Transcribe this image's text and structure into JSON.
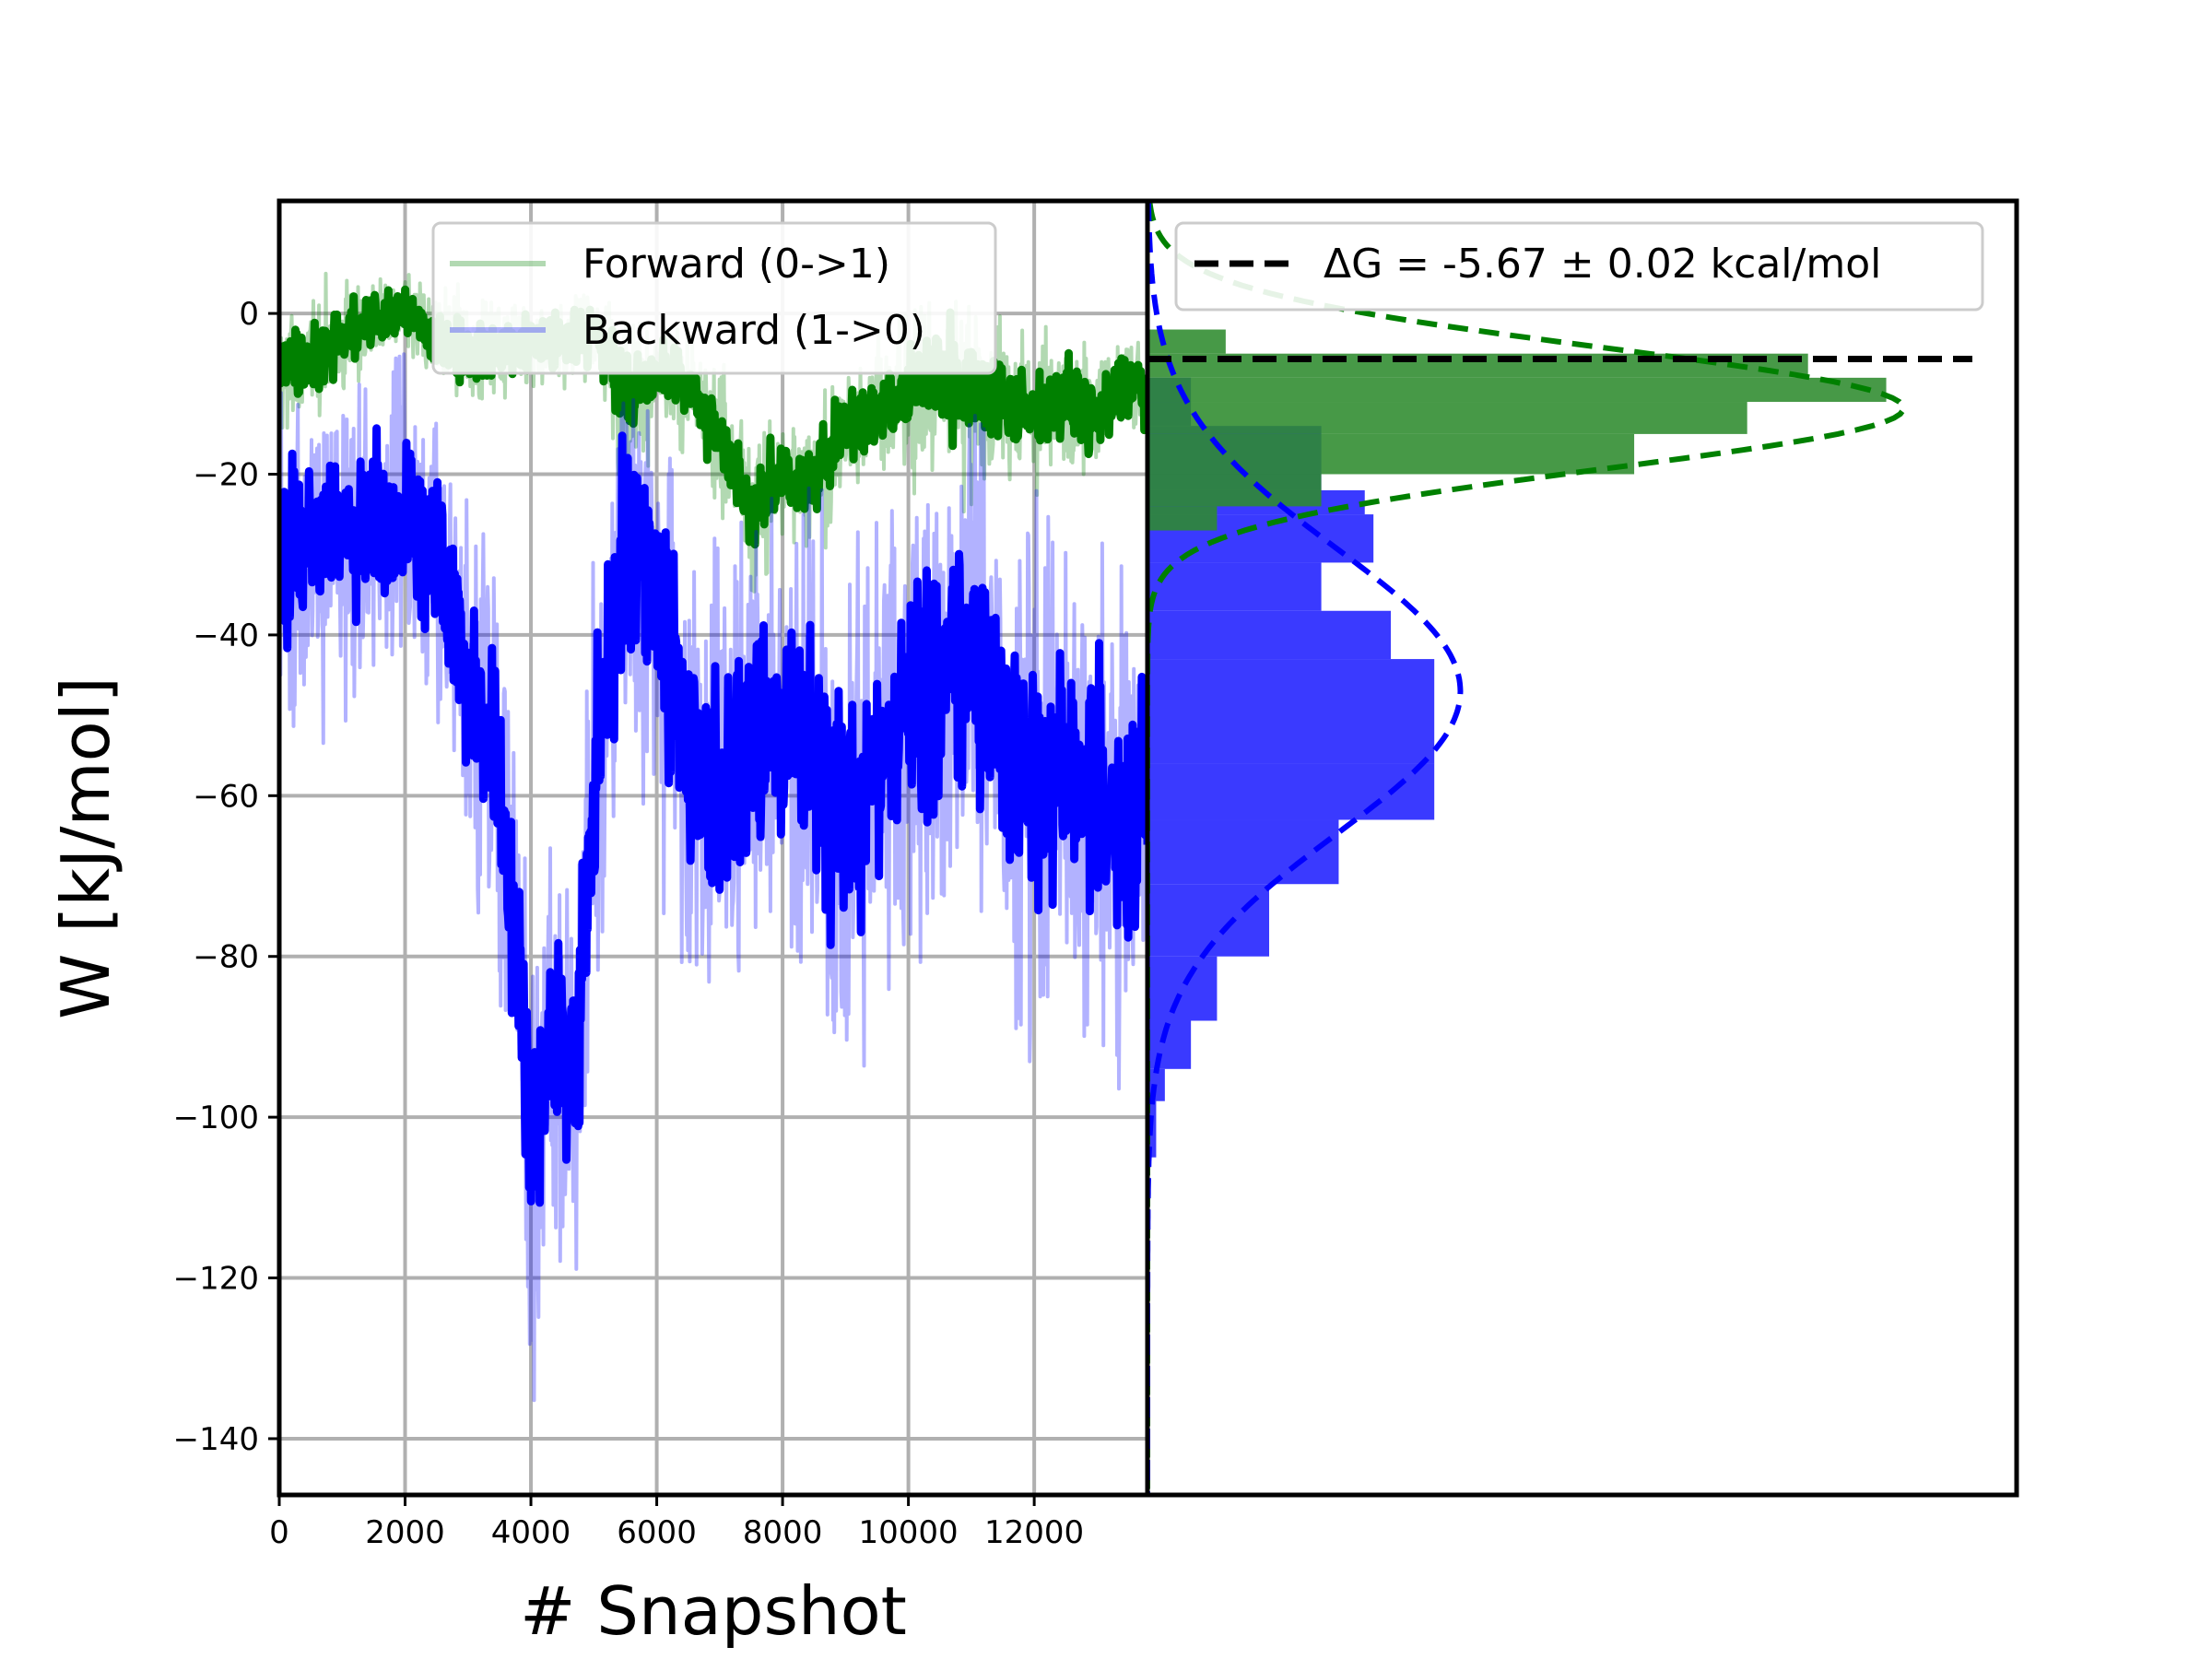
{
  "chart_data": [
    {
      "type": "line",
      "panel": "left",
      "xlabel": "# Snapshot",
      "ylabel": "W [kJ/mol]",
      "xlim": [
        0,
        13800
      ],
      "ylim": [
        -147,
        14
      ],
      "xticks": [
        0,
        2000,
        4000,
        6000,
        8000,
        10000,
        12000
      ],
      "yticks": [
        0,
        -20,
        -40,
        -60,
        -80,
        -100,
        -120,
        -140
      ],
      "xtick_labels": [
        "0",
        "2000",
        "4000",
        "6000",
        "8000",
        "10000",
        "12000"
      ],
      "ytick_labels": [
        "0",
        "−20",
        "−40",
        "−60",
        "−80",
        "−100",
        "−120",
        "−140"
      ],
      "grid": true,
      "legend_position": "top-center",
      "series": [
        {
          "name": "Forward (0->1)",
          "color": "#008000",
          "x": [
            0,
            500,
            1000,
            1500,
            2000,
            2500,
            3000,
            3500,
            4000,
            4500,
            5000,
            5500,
            6000,
            6500,
            7000,
            7500,
            8000,
            8500,
            9000,
            9500,
            10000,
            10500,
            11000,
            11500,
            12000,
            12500,
            13000,
            13500,
            13800
          ],
          "values": [
            -7,
            -6,
            -3,
            -1,
            0,
            -3,
            -5,
            -4,
            -4,
            -3,
            -2,
            -10,
            -8,
            -9,
            -15,
            -25,
            -20,
            -21,
            -14,
            -12,
            -10,
            -8,
            -10,
            -11,
            -12,
            -11,
            -12,
            -8,
            -10
          ],
          "band_low": [
            -17,
            -15,
            -12,
            -9,
            -8,
            -12,
            -14,
            -14,
            -13,
            -11,
            -12,
            -24,
            -19,
            -18,
            -26,
            -35,
            -31,
            -33,
            -27,
            -25,
            -25,
            -26,
            -30,
            -21,
            -23,
            -22,
            -23,
            -18,
            -20
          ],
          "band_high": [
            3,
            4,
            6,
            6,
            5,
            5,
            3,
            2,
            3,
            4,
            3,
            1,
            0,
            -2,
            -4,
            -10,
            -10,
            -12,
            -4,
            -1,
            0,
            2,
            1,
            0,
            0,
            1,
            -1,
            1,
            0
          ]
        },
        {
          "name": "Backward (1->0)",
          "color": "#0000ff",
          "x": [
            0,
            500,
            1000,
            1500,
            2000,
            2500,
            3000,
            3500,
            3800,
            4000,
            4300,
            4700,
            5000,
            5500,
            6000,
            6500,
            7000,
            7500,
            8000,
            8500,
            9000,
            9500,
            10000,
            10500,
            11000,
            11500,
            12000,
            12500,
            13000,
            13500,
            13800
          ],
          "values": [
            -30,
            -28,
            -29,
            -27,
            -25,
            -30,
            -45,
            -58,
            -80,
            -105,
            -90,
            -95,
            -60,
            -28,
            -35,
            -55,
            -60,
            -52,
            -50,
            -55,
            -62,
            -58,
            -50,
            -45,
            -40,
            -52,
            -58,
            -55,
            -60,
            -65,
            -55
          ],
          "band_low": [
            -62,
            -54,
            -59,
            -55,
            -55,
            -60,
            -80,
            -90,
            -125,
            -140,
            -115,
            -122,
            -102,
            -72,
            -82,
            -95,
            -102,
            -92,
            -95,
            -98,
            -105,
            -100,
            -95,
            -92,
            -90,
            -95,
            -100,
            -92,
            -98,
            -100,
            -95
          ],
          "band_high": [
            -10,
            -8,
            -11,
            -7,
            -5,
            -11,
            -22,
            -30,
            -52,
            -70,
            -60,
            -55,
            -30,
            -10,
            -13,
            -25,
            -20,
            -22,
            -18,
            -20,
            -28,
            -26,
            -18,
            -14,
            -12,
            -18,
            -20,
            -20,
            -22,
            -30,
            -25
          ]
        }
      ]
    },
    {
      "type": "bar",
      "panel": "right",
      "orientation": "horizontal",
      "shared_y_axis": true,
      "grid": false,
      "legend_position": "top-center",
      "deltaG_label": "ΔG = -5.67 ± 0.02 kcal/mol",
      "deltaG_line_y": -5.67,
      "series": [
        {
          "name": "forward histogram",
          "color": "#2e8b2e",
          "bins": [
            [
              -2,
              -5
            ],
            [
              -5,
              -8
            ],
            [
              -8,
              -11
            ],
            [
              -11,
              -15
            ],
            [
              -15,
              -20
            ],
            [
              -20,
              -24
            ],
            [
              -24,
              -27
            ]
          ],
          "density": [
            0.09,
            0.76,
            0.85,
            0.69,
            0.56,
            0.2,
            0.08
          ],
          "fit_mean": -11.8,
          "fit_sigma": 7.5,
          "fit_peak": 0.87
        },
        {
          "name": "backward histogram",
          "color": "#1f1fff",
          "bins": [
            [
              -8,
              -14
            ],
            [
              -14,
              -22
            ],
            [
              -22,
              -25
            ],
            [
              -25,
              -31
            ],
            [
              -31,
              -37
            ],
            [
              -37,
              -43
            ],
            [
              -43,
              -56
            ],
            [
              -56,
              -63
            ],
            [
              -63,
              -71
            ],
            [
              -71,
              -80
            ],
            [
              -80,
              -88
            ],
            [
              -88,
              -94
            ],
            [
              -94,
              -98
            ],
            [
              -98,
              -105
            ]
          ],
          "density": [
            0.05,
            0.2,
            0.25,
            0.26,
            0.2,
            0.28,
            0.33,
            0.33,
            0.22,
            0.14,
            0.08,
            0.05,
            0.02,
            0.01
          ],
          "fit_mean": -47,
          "fit_sigma": 17.7,
          "fit_peak": 0.36
        }
      ]
    }
  ]
}
